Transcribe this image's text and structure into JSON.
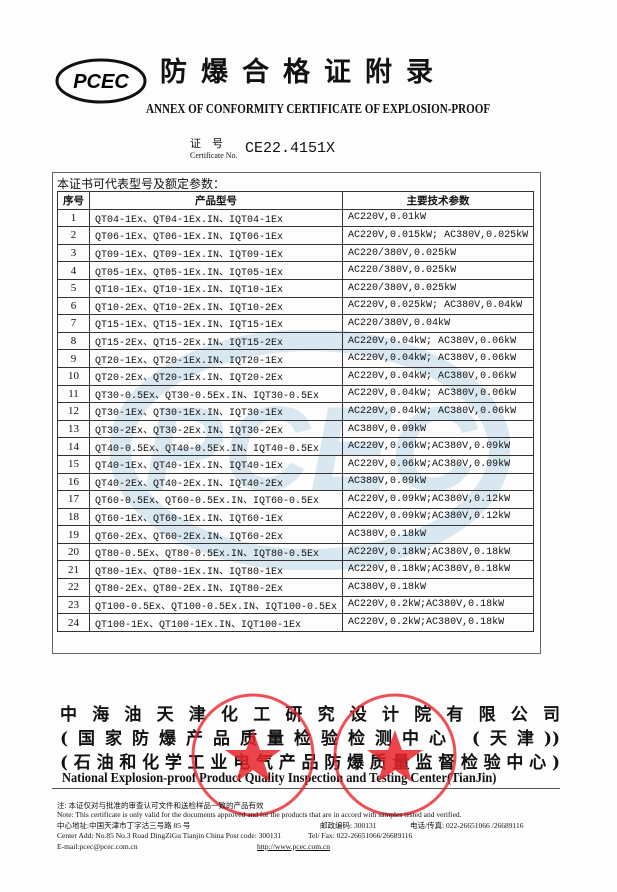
{
  "logo_text": "PCEC",
  "title_cn": "防爆合格证附录",
  "title_en": "ANNEX OF CONFORMITY CERTIFICATE OF EXPLOSION-PROOF",
  "cert_label_cn": "证　号",
  "cert_label_en": "Certificate No.",
  "cert_no": "CE22.4151X",
  "intro": "本证书可代表型号及额定参数：",
  "table": {
    "headers": [
      "序号",
      "产品型号",
      "主要技术参数"
    ],
    "rows": [
      [
        "1",
        "QT04-1Ex、QT04-1Ex.IN、IQT04-1Ex",
        "AC220V,0.01kW"
      ],
      [
        "2",
        "QT06-1Ex、QT06-1Ex.IN、IQT06-1Ex",
        "AC220V,0.015kW; AC380V,0.025kW"
      ],
      [
        "3",
        "QT09-1Ex、QT09-1Ex.IN、IQT09-1Ex",
        "AC220/380V,0.025kW"
      ],
      [
        "4",
        "QT05-1Ex、QT05-1Ex.IN、IQT05-1Ex",
        "AC220/380V,0.025kW"
      ],
      [
        "5",
        "QT10-1Ex、QT10-1Ex.IN、IQT10-1Ex",
        "AC220/380V,0.025kW"
      ],
      [
        "6",
        "QT10-2Ex、QT10-2Ex.IN、IQT10-2Ex",
        "AC220V,0.025kW; AC380V,0.04kW"
      ],
      [
        "7",
        "QT15-1Ex、QT15-1Ex.IN、IQT15-1Ex",
        "AC220/380V,0.04kW"
      ],
      [
        "8",
        "QT15-2Ex、QT15-2Ex.IN、IQT15-2Ex",
        "AC220V,0.04kW; AC380V,0.06kW"
      ],
      [
        "9",
        "QT20-1Ex、QT20-1Ex.IN、IQT20-1Ex",
        "AC220V,0.04kW; AC380V,0.06kW"
      ],
      [
        "10",
        "QT20-2Ex、QT20-1Ex.IN、IQT20-2Ex",
        "AC220V,0.04kW; AC380V,0.06kW"
      ],
      [
        "11",
        "QT30-0.5Ex、QT30-0.5Ex.IN、IQT30-0.5Ex",
        "AC220V,0.04kW; AC380V,0.06kW"
      ],
      [
        "12",
        "QT30-1Ex、QT30-1Ex.IN、IQT30-1Ex",
        "AC220V,0.04kW; AC380V,0.06kW"
      ],
      [
        "13",
        "QT30-2Ex、QT30-2Ex.IN、IQT30-2Ex",
        "AC380V,0.09kW"
      ],
      [
        "14",
        "QT40-0.5Ex、QT40-0.5Ex.IN、IQT40-0.5Ex",
        "AC220V,0.06kW;AC380V,0.09kW"
      ],
      [
        "15",
        "QT40-1Ex、QT40-1Ex.IN、IQT40-1Ex",
        "AC220V,0.06kW;AC380V,0.09kW"
      ],
      [
        "16",
        "QT40-2Ex、QT40-2Ex.IN、IQT40-2Ex",
        "AC380V,0.09kW"
      ],
      [
        "17",
        "QT60-0.5Ex、QT60-0.5Ex.IN、IQT60-0.5Ex",
        "AC220V,0.09kW;AC380V,0.12kW"
      ],
      [
        "18",
        "QT60-1Ex、QT60-1Ex.IN、IQT60-1Ex",
        "AC220V,0.09kW;AC380V,0.12kW"
      ],
      [
        "19",
        "QT60-2Ex、QT60-2Ex.IN、IQT60-2Ex",
        "AC380V,0.18kW"
      ],
      [
        "20",
        "QT80-0.5Ex、QT80-0.5Ex.IN、IQT80-0.5Ex",
        "AC220V,0.18kW;AC380V,0.18kW"
      ],
      [
        "21",
        "QT80-1Ex、QT80-1Ex.IN、IQT80-1Ex",
        "AC220V,0.18kW;AC380V,0.18kW"
      ],
      [
        "22",
        "QT80-2Ex、QT80-2Ex.IN、IQT80-2Ex",
        "AC380V,0.18kW"
      ],
      [
        "23",
        "QT100-0.5Ex、QT100-0.5Ex.IN、IQT100-0.5Ex",
        "AC220V,0.2kW;AC380V,0.18kW"
      ],
      [
        "24",
        "QT100-1Ex、QT100-1Ex.IN、IQT100-1Ex",
        "AC220V,0.2kW;AC380V,0.18kW"
      ]
    ]
  },
  "org": {
    "line1": "中海油天津化工研究设计院有限公司",
    "line2": "(国家防爆产品质量检验检测中心 (天津))",
    "line3": "(石油和化学工业电气产品防爆质量监督检验中心)",
    "line_en": "National Explosion-proof Product Quality Inspection and Testing Center(TianJin)"
  },
  "footer": {
    "note_cn": "注: 本证仅对与批准的审查认可文件和送检样品一致的产品有效",
    "note_en": "Note: This certificate is only valid for the documents approved and for the products that are in accord with samples tested and verified.",
    "addr_cn": "中心地址:中国天津市丁字沽三号路 85 号",
    "post_cn": "邮政编码: 300131",
    "tel_cn": "电话/传真: 022-26651066 /26689116",
    "addr_en": "Center Add: No.85 No.3 Road DingZiGu Tianjin China Post code: 300131",
    "tel_en": "Tel/ Fax: 022-26651066/26689116",
    "email": "E-mail:pcec@pcec.com.cn",
    "url": "http://www.pcec.com.cn"
  },
  "colors": {
    "stamp": "#e8242c",
    "watermark": "#5b9bc4",
    "text": "#111111"
  }
}
